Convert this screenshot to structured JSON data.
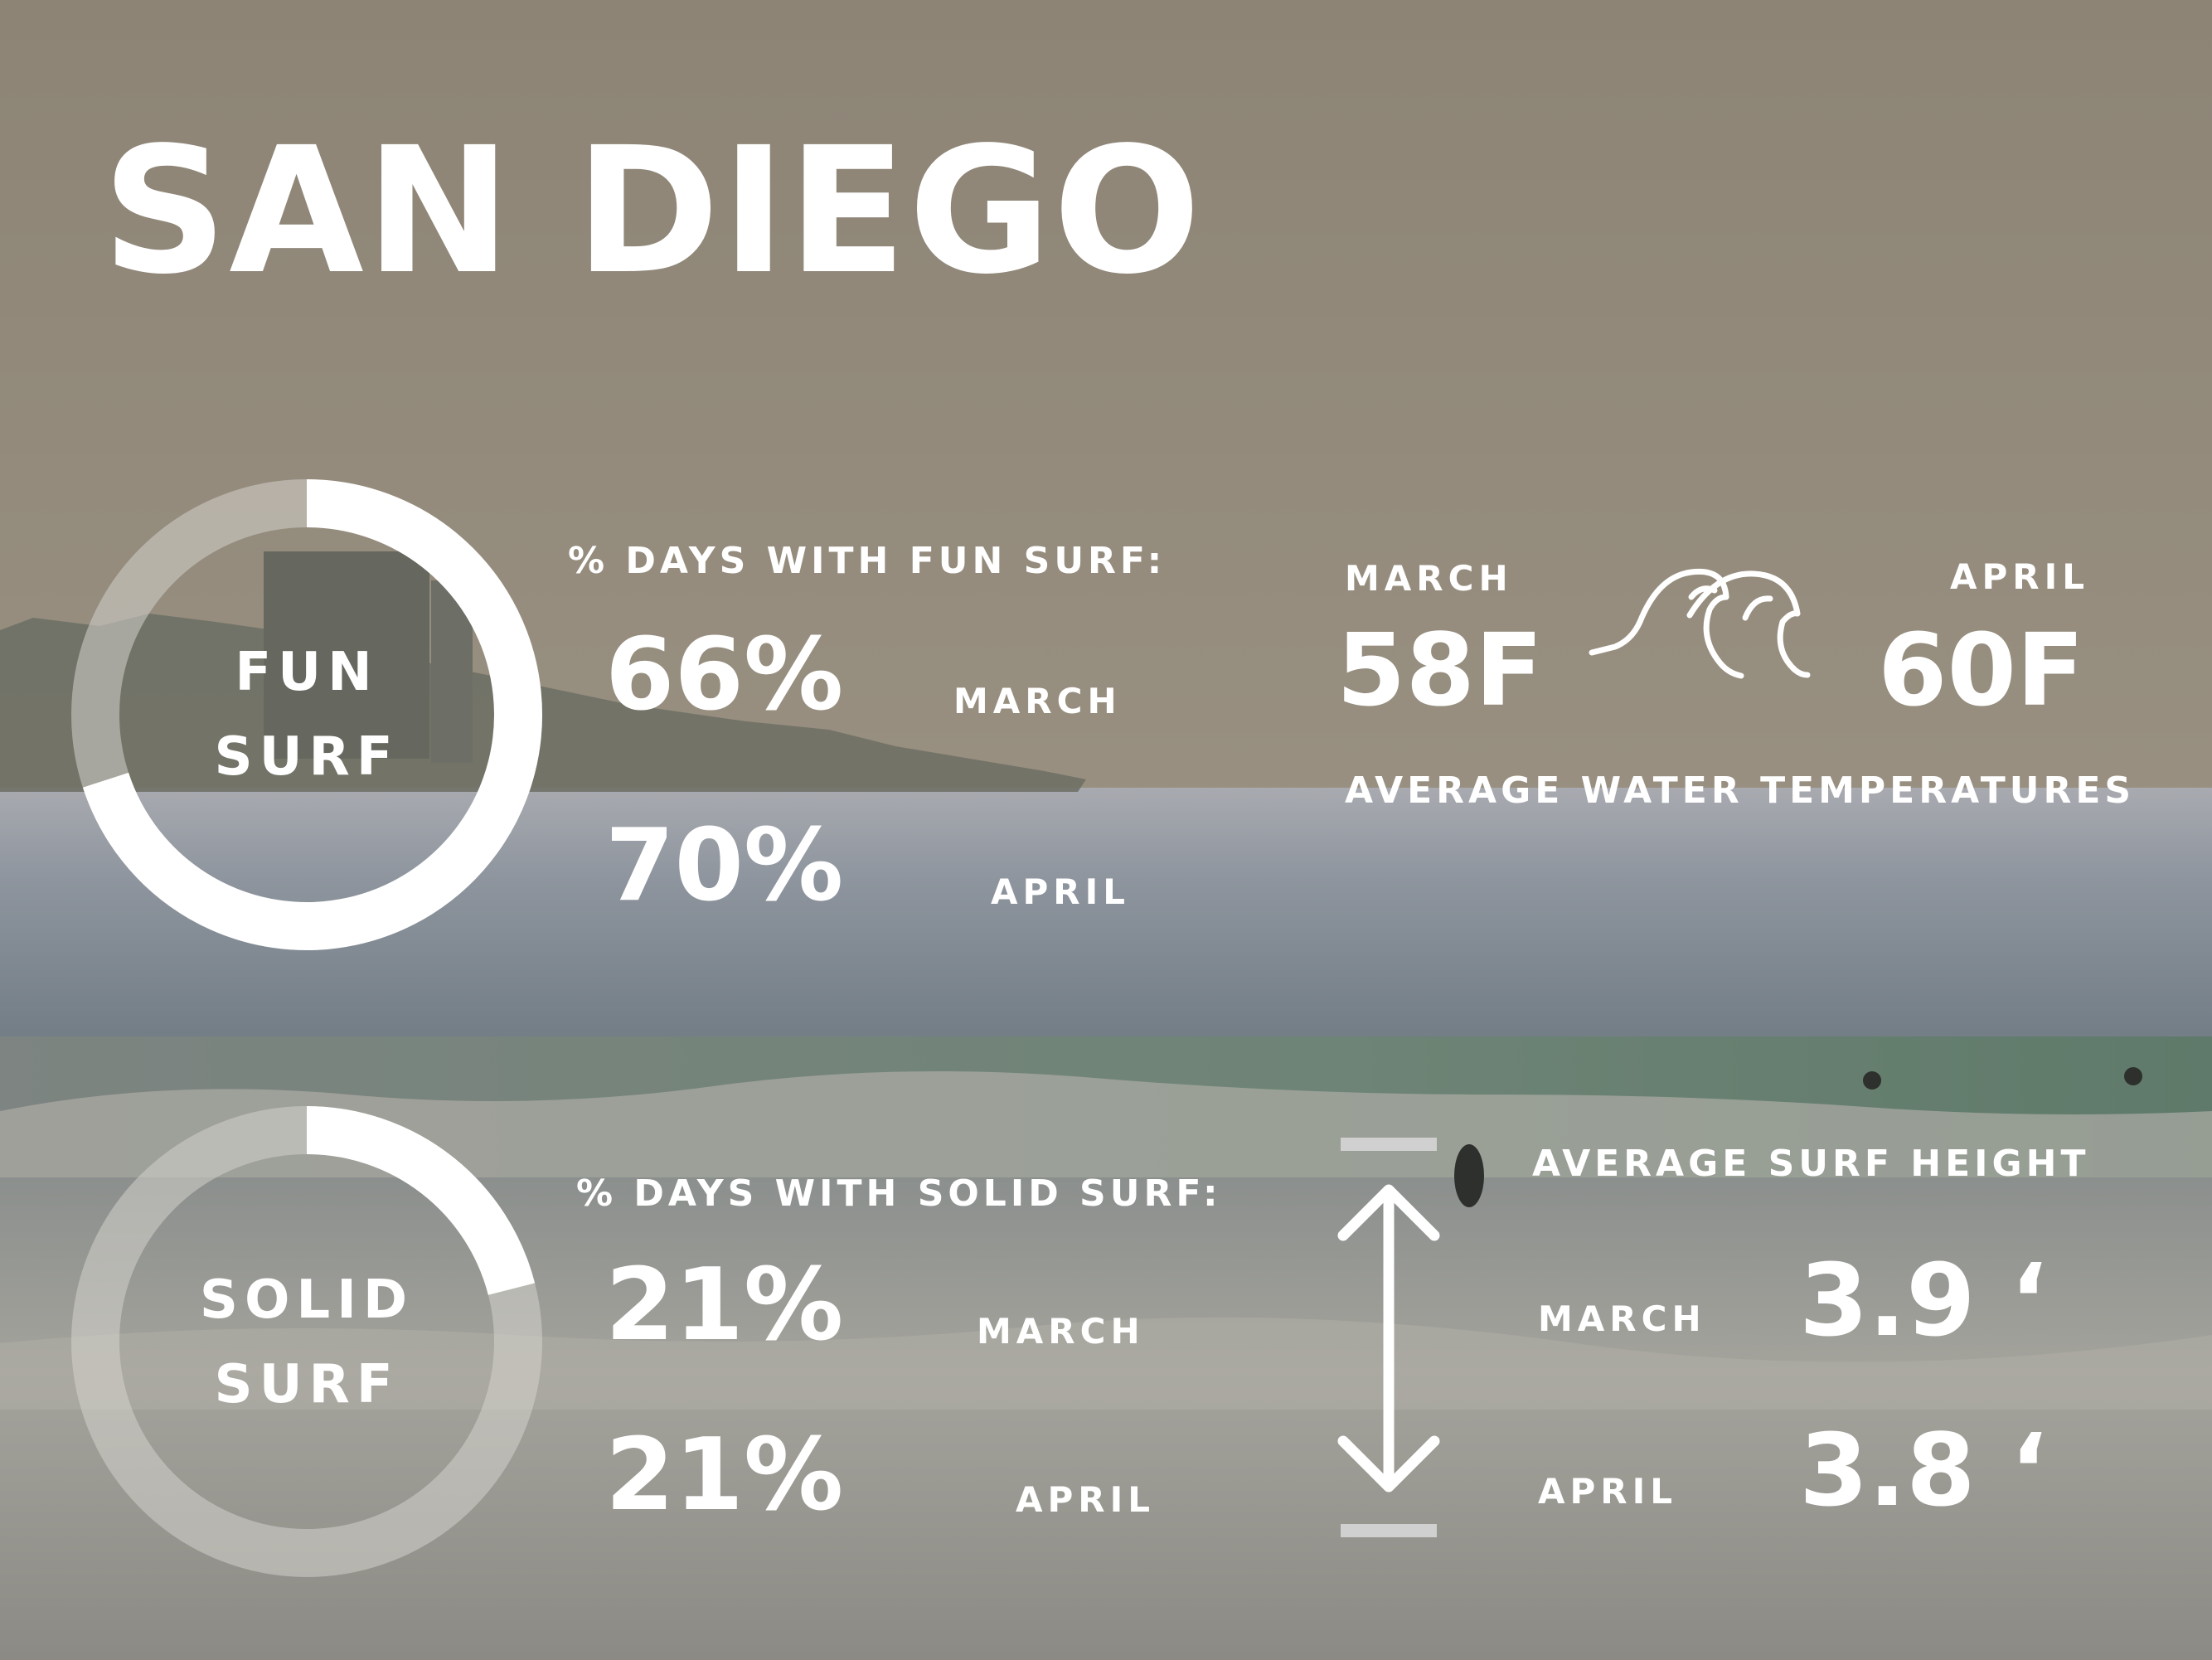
{
  "title": "SAN DIEGO",
  "colors": {
    "text": "#ffffff",
    "ring_track": "#d4d2cc",
    "ring_fill": "#ffffff"
  },
  "fun_surf": {
    "ring_label": [
      "FUN",
      "SURF"
    ],
    "heading": "% DAYS WITH FUN SURF:",
    "march_value": "66%",
    "march_label": "MARCH",
    "april_value": "70%",
    "april_label": "APRIL"
  },
  "solid_surf": {
    "ring_label": [
      "SOLID",
      "SURF"
    ],
    "heading": "% DAYS WITH SOLID SURF:",
    "march_value": "21%",
    "march_label": "MARCH",
    "april_value": "21%",
    "april_label": "APRIL"
  },
  "water_temp": {
    "march_label": "MARCH",
    "march_value": "58F",
    "april_label": "APRIL",
    "april_value": "60F",
    "caption": "AVERAGE WATER TEMPERATURES",
    "icon": "wave-icon"
  },
  "surf_height": {
    "heading": "AVERAGE SURF HEIGHT",
    "march_label": "MARCH",
    "march_value": "3.9 ‘",
    "april_label": "APRIL",
    "april_value": "3.8 ‘",
    "icon": "double-arrow-icon"
  },
  "chart_data": [
    {
      "type": "pie",
      "variant": "donut",
      "title": "FUN SURF",
      "unit": "% days",
      "categories": [
        "MARCH",
        "APRIL"
      ],
      "values": [
        66,
        70
      ]
    },
    {
      "type": "pie",
      "variant": "donut",
      "title": "SOLID SURF",
      "unit": "% days",
      "categories": [
        "MARCH",
        "APRIL"
      ],
      "values": [
        21,
        21
      ]
    },
    {
      "type": "table",
      "title": "AVERAGE WATER TEMPERATURES",
      "categories": [
        "MARCH",
        "APRIL"
      ],
      "values": [
        58,
        60
      ],
      "unit": "F"
    },
    {
      "type": "table",
      "title": "AVERAGE SURF HEIGHT",
      "categories": [
        "MARCH",
        "APRIL"
      ],
      "values": [
        3.9,
        3.8
      ],
      "unit": "ft"
    }
  ]
}
